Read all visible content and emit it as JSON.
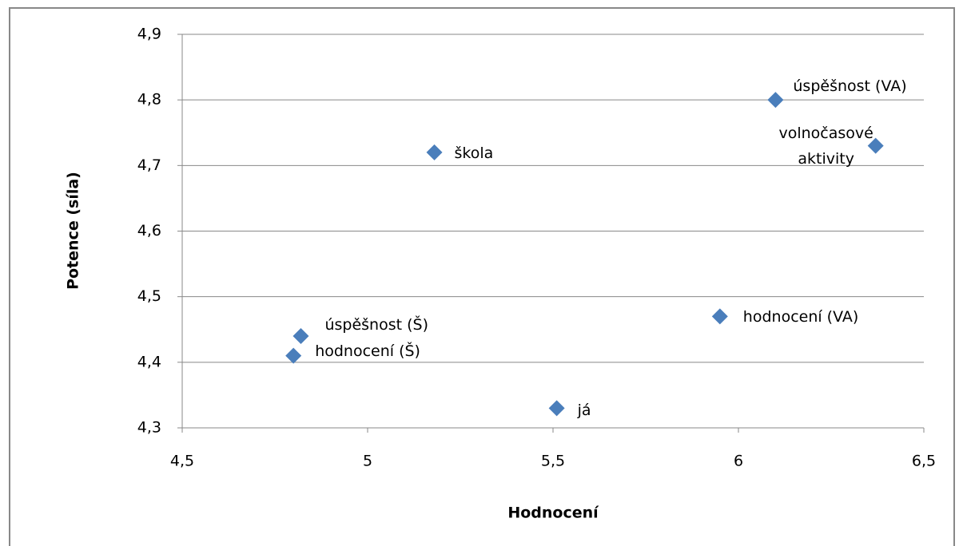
{
  "chart_data": {
    "type": "scatter",
    "x_label": "Hodnocení",
    "y_label": "Potence (síla)",
    "x": [
      6.1,
      6.37,
      5.18,
      4.82,
      4.8,
      5.51,
      5.95
    ],
    "values": [
      4.8,
      4.73,
      4.72,
      4.44,
      4.41,
      4.33,
      4.47
    ],
    "labels": [
      "úspěšnost (VA)",
      "volnočasové aktivity",
      "škola",
      "úspěšnost (Š)",
      "hodnocení  (Š)",
      "já",
      "hodnocení (VA)"
    ],
    "color": "#4a7ebb",
    "xlim": [
      4.5,
      6.5
    ],
    "xticks": [
      {
        "value": 4.5,
        "label": "4,5"
      },
      5,
      {
        "value": 5.5,
        "label": "5,5"
      },
      6,
      {
        "value": 6.5,
        "label": "6,5"
      }
    ],
    "ylim": [
      4.3,
      4.9
    ],
    "yticks": [
      {
        "value": 4.3,
        "label": "4,3"
      },
      {
        "value": 4.4,
        "label": "4,4"
      },
      {
        "value": 4.5,
        "label": "4,5"
      },
      {
        "value": 4.6,
        "label": "4,6"
      },
      {
        "value": 4.7,
        "label": "4,7"
      },
      {
        "value": 4.8,
        "label": "4,8"
      },
      {
        "value": 4.9,
        "label": "4,9"
      }
    ],
    "grid": true
  }
}
